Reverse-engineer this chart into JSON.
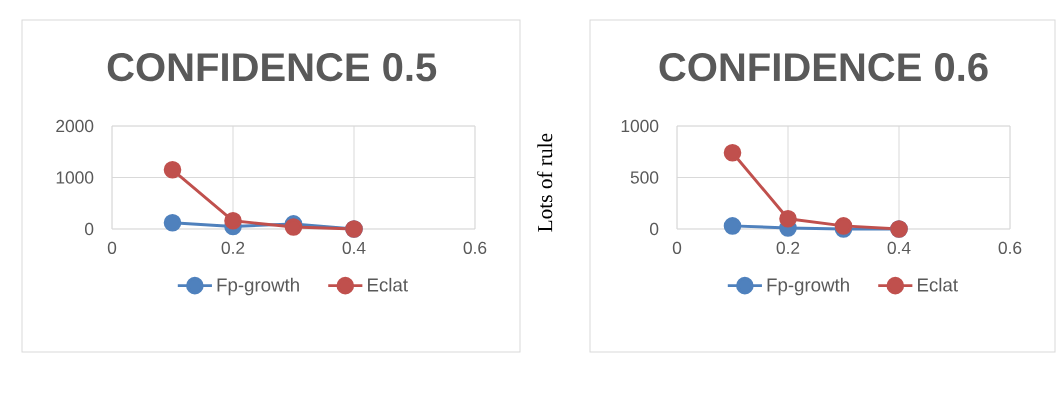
{
  "chart_data": [
    {
      "type": "line",
      "title": "CONFIDENCE 0.5",
      "x": [
        0.1,
        0.2,
        0.3,
        0.4
      ],
      "xlim": [
        0,
        0.6
      ],
      "xticks": [
        0,
        0.2,
        0.4,
        0.6
      ],
      "ylim": [
        0,
        2000
      ],
      "yticks": [
        0,
        1000,
        2000
      ],
      "grid": true,
      "legend": "bottom",
      "marker": "circle",
      "series": [
        {
          "name": "Fp-growth",
          "color": "#4f81bd",
          "values": [
            120,
            50,
            100,
            0
          ]
        },
        {
          "name": "Eclat",
          "color": "#c0504d",
          "values": [
            1150,
            160,
            40,
            0
          ]
        }
      ]
    },
    {
      "type": "line",
      "title": "CONFIDENCE 0.6",
      "ylabel": "Lots of rule",
      "x": [
        0.1,
        0.2,
        0.3,
        0.4
      ],
      "xlim": [
        0,
        0.6
      ],
      "xticks": [
        0,
        0.2,
        0.4,
        0.6
      ],
      "ylim": [
        0,
        1000
      ],
      "yticks": [
        0,
        500,
        1000
      ],
      "grid": true,
      "legend": "bottom",
      "marker": "circle",
      "series": [
        {
          "name": "Fp-growth",
          "color": "#4f81bd",
          "values": [
            30,
            10,
            0,
            0
          ]
        },
        {
          "name": "Eclat",
          "color": "#c0504d",
          "values": [
            740,
            100,
            30,
            0
          ]
        }
      ]
    }
  ]
}
